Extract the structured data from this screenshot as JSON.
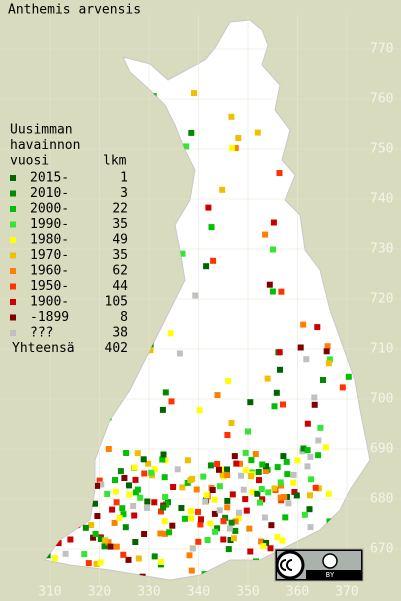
{
  "title": "Anthemis arvensis",
  "legend": {
    "heading": [
      "Uusimman",
      "havainnon",
      "vuosi"
    ],
    "count_heading": "lkm",
    "entries": [
      {
        "label": "2015-",
        "count": 1,
        "color": "#006400"
      },
      {
        "label": "2010-",
        "count": 3,
        "color": "#008c00"
      },
      {
        "label": "2000-",
        "count": 22,
        "color": "#00c000"
      },
      {
        "label": "1990-",
        "count": 35,
        "color": "#33e633"
      },
      {
        "label": "1980-",
        "count": 49,
        "color": "#ffff00"
      },
      {
        "label": "1970-",
        "count": 35,
        "color": "#f0c000"
      },
      {
        "label": "1960-",
        "count": 62,
        "color": "#ff7f00"
      },
      {
        "label": "1950-",
        "count": 44,
        "color": "#ff3300"
      },
      {
        "label": "1900-",
        "count": 105,
        "color": "#cc0000"
      },
      {
        "label": "-1899",
        "count": 8,
        "color": "#800000"
      },
      {
        "label": "???",
        "count": 38,
        "color": "#c0c0c0"
      }
    ],
    "total_label": "Yhteensä",
    "total": 402
  },
  "x_grid": [
    310,
    320,
    330,
    340,
    350,
    360,
    370
  ],
  "y_grid": [
    670,
    680,
    690,
    700,
    710,
    720,
    730,
    740,
    750,
    760,
    770
  ],
  "license": "BY"
}
